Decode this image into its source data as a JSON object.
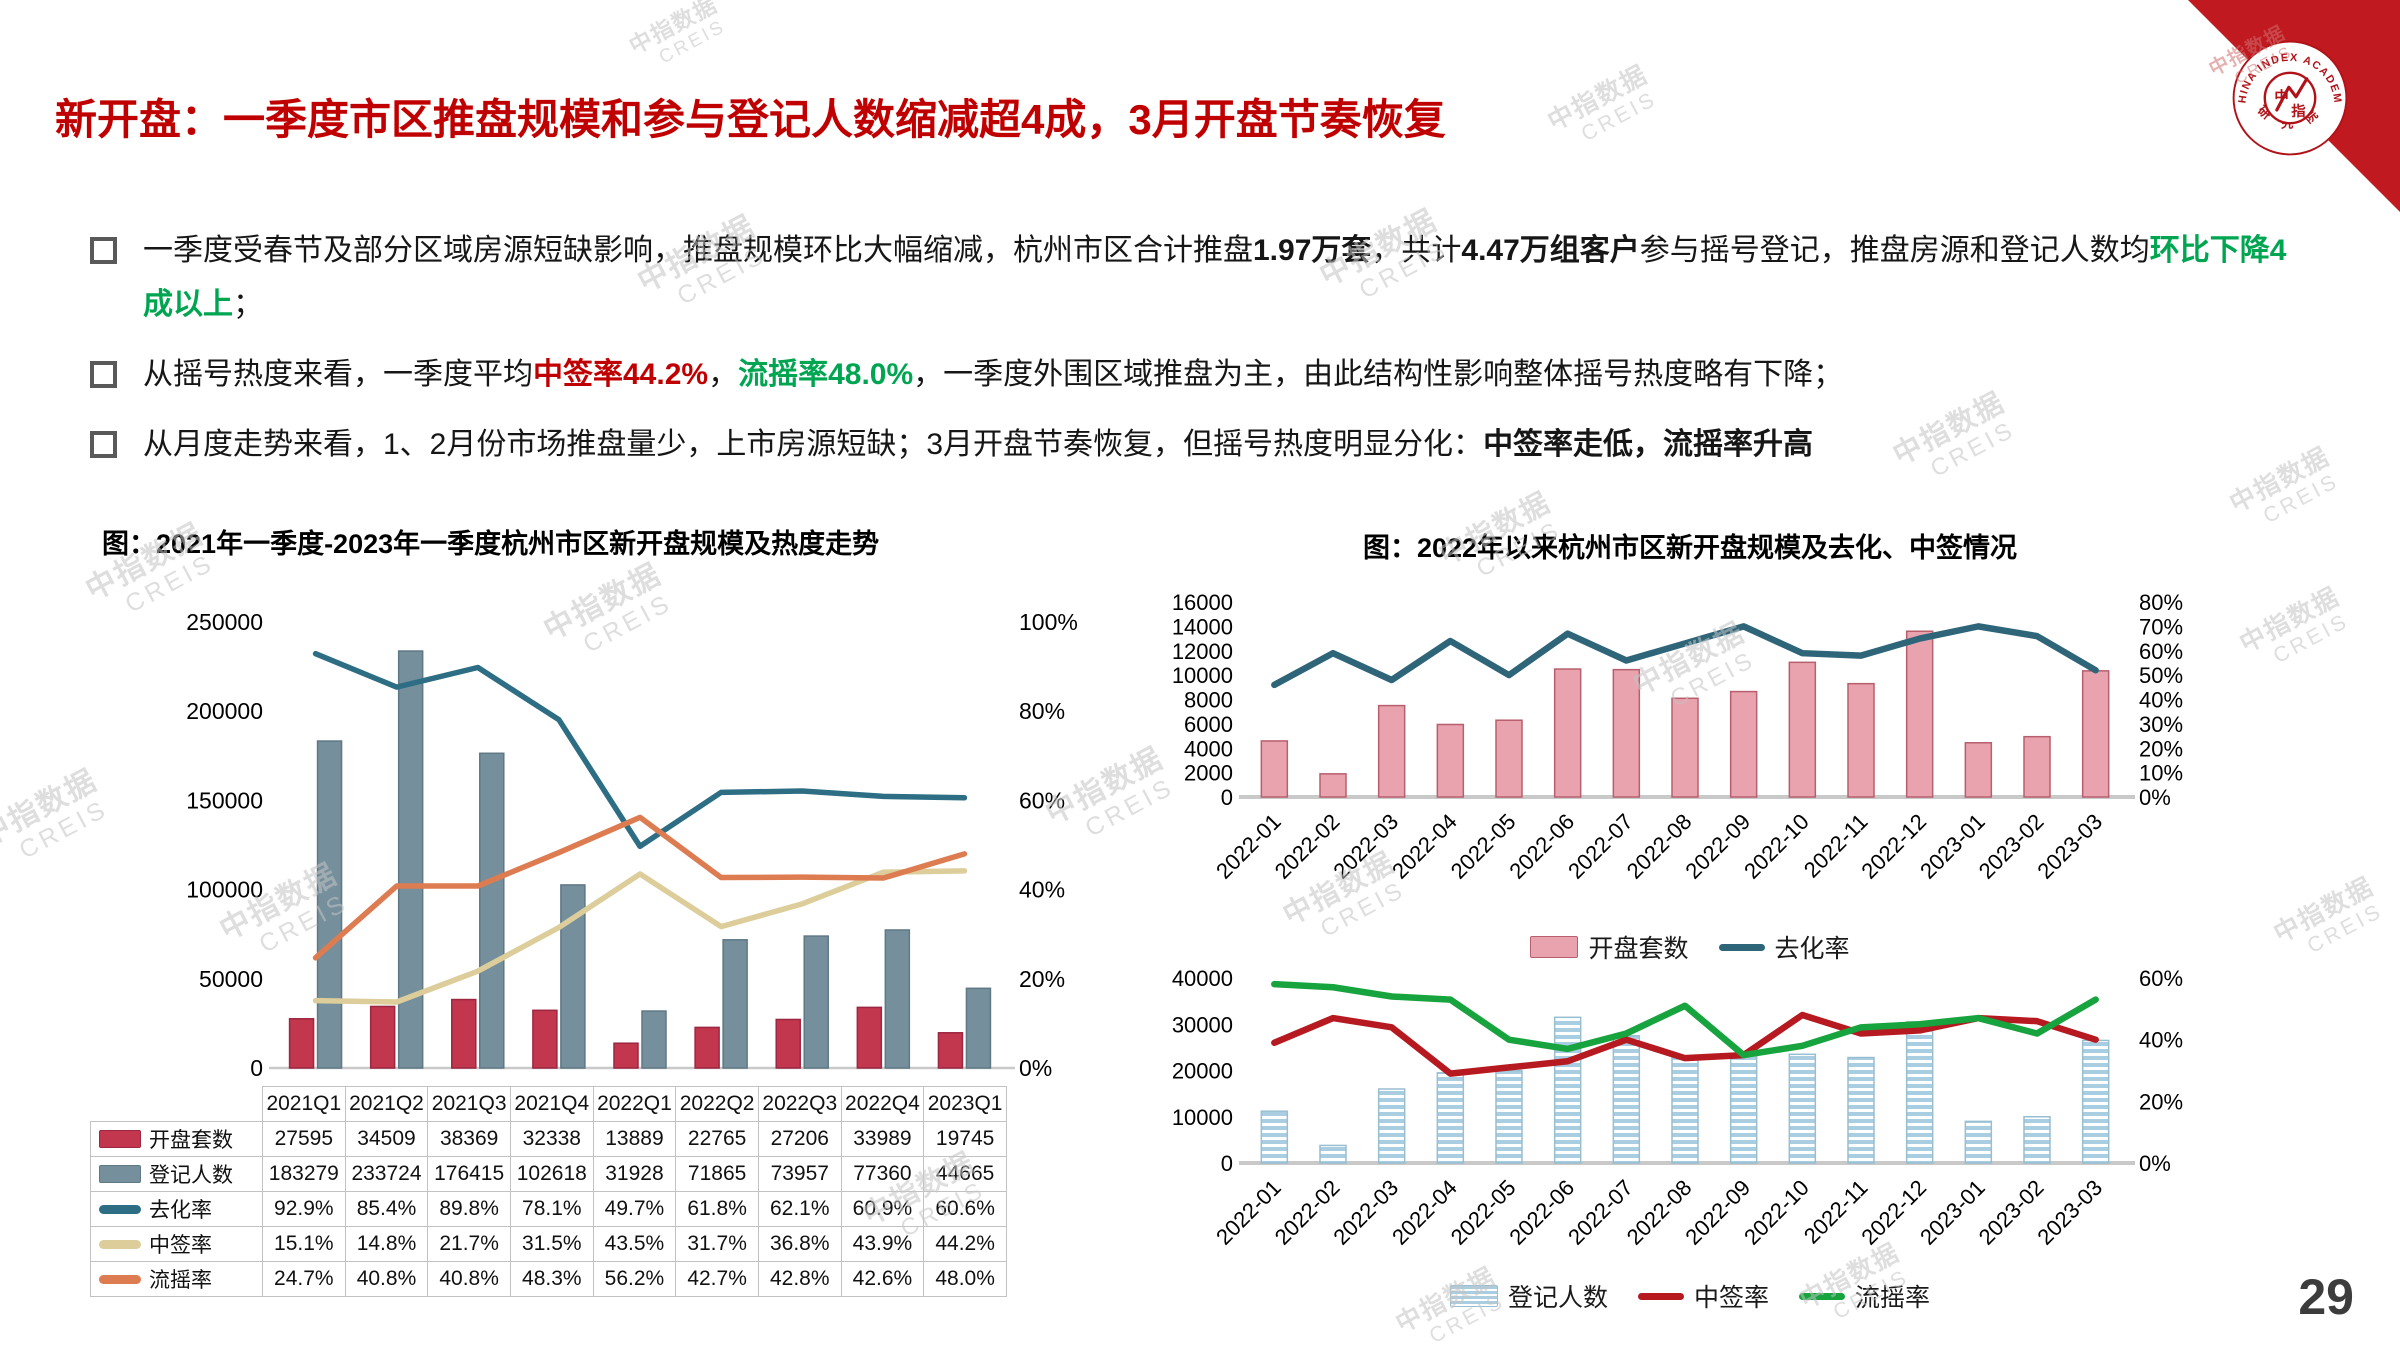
{
  "slide": {
    "title": "新开盘：一季度市区推盘规模和参与登记人数缩减超4成，3月开盘节奏恢复",
    "page_number": "29"
  },
  "logo": {
    "arc_text": "CHINA INDEX ACADEMY",
    "bottom_text": "研 究 院",
    "center_top": "中",
    "center_bottom": "指"
  },
  "watermark": {
    "line1": "中指数据",
    "line2": "CREIS"
  },
  "bullets": [
    {
      "segments": [
        {
          "t": "一季度受春节及部分区域房源短缺影响，推盘规模环比大幅缩减，杭州市区合计推盘",
          "s": "n"
        },
        {
          "t": "1.97万套",
          "s": "b"
        },
        {
          "t": "，共计",
          "s": "n"
        },
        {
          "t": "4.47万组客户",
          "s": "b"
        },
        {
          "t": "参与摇号登记，推盘房源和登记人数均",
          "s": "n"
        },
        {
          "t": "环比下降4成以上",
          "s": "gb"
        },
        {
          "t": "；",
          "s": "n"
        }
      ]
    },
    {
      "segments": [
        {
          "t": "从摇号热度来看，一季度平均",
          "s": "n"
        },
        {
          "t": "中签率44.2%",
          "s": "rb"
        },
        {
          "t": "，",
          "s": "n"
        },
        {
          "t": "流摇率48.0%",
          "s": "gb"
        },
        {
          "t": "，一季度外围区域推盘为主，由此结构性影响整体摇号热度略有下降；",
          "s": "n"
        }
      ]
    },
    {
      "segments": [
        {
          "t": "从月度走势来看，1、2月份市场推盘量少，上市房源短缺；3月开盘节奏恢复，但摇号热度明显分化：",
          "s": "n"
        },
        {
          "t": "中签率走低，流摇率升高",
          "s": "b"
        }
      ]
    }
  ],
  "chart_data": [
    {
      "id": "quarterly-combo",
      "type": "bar+line",
      "title": "图：2021年一季度-2023年一季度杭州市区新开盘规模及热度走势",
      "categories": [
        "2021Q1",
        "2021Q2",
        "2021Q3",
        "2021Q4",
        "2022Q1",
        "2022Q2",
        "2022Q3",
        "2022Q4",
        "2023Q1"
      ],
      "bar_series": [
        {
          "name": "开盘套数",
          "color": "#c2364e",
          "border": "#9c2740",
          "values": [
            27595,
            34509,
            38369,
            32338,
            13889,
            22765,
            27206,
            33989,
            19745
          ]
        },
        {
          "name": "登记人数",
          "color": "#75909c",
          "border": "#5f7885",
          "values": [
            183279,
            233724,
            176415,
            102618,
            31928,
            71865,
            73957,
            77360,
            44665
          ]
        }
      ],
      "line_series": [
        {
          "name": "去化率",
          "color": "#2d6e84",
          "values": [
            92.9,
            85.4,
            89.8,
            78.1,
            49.7,
            61.8,
            62.1,
            60.9,
            60.6
          ]
        },
        {
          "name": "中签率",
          "color": "#dccd9a",
          "values": [
            15.1,
            14.8,
            21.7,
            31.5,
            43.5,
            31.7,
            36.8,
            43.9,
            44.2
          ]
        },
        {
          "name": "流摇率",
          "color": "#dd7b51",
          "values": [
            24.7,
            40.8,
            40.8,
            48.3,
            56.2,
            42.7,
            42.8,
            42.6,
            48.0
          ]
        }
      ],
      "left_axis": {
        "min": 0,
        "max": 250000,
        "ticks": [
          0,
          50000,
          100000,
          150000,
          200000,
          250000
        ]
      },
      "right_axis": {
        "min": 0,
        "max": 100,
        "ticks": [
          0,
          20,
          40,
          60,
          80,
          100
        ]
      },
      "legend_position": "table-left-column",
      "grid": false
    },
    {
      "id": "monthly-openings",
      "type": "bar+line",
      "title": "图：2022年以来杭州市区新开盘规模及去化、中签情况",
      "categories": [
        "2022-01",
        "2022-02",
        "2022-03",
        "2022-04",
        "2022-05",
        "2022-06",
        "2022-07",
        "2022-08",
        "2022-09",
        "2022-10",
        "2022-11",
        "2022-12",
        "2023-01",
        "2023-02",
        "2023-03"
      ],
      "bar_series": [
        {
          "name": "开盘套数",
          "color": "#e8a3ae",
          "border": "#b85f6d",
          "values": [
            4600,
            1900,
            7500,
            5950,
            6300,
            10500,
            10450,
            8100,
            8650,
            11050,
            9300,
            13600,
            4450,
            4950,
            10350
          ]
        }
      ],
      "line_series": [
        {
          "name": "去化率",
          "color": "#2f6579",
          "values": [
            46,
            59,
            48,
            64,
            50,
            67,
            56,
            63,
            70,
            59,
            58,
            65,
            70,
            66,
            52
          ]
        }
      ],
      "left_axis": {
        "min": 0,
        "max": 16000,
        "ticks": [
          0,
          2000,
          4000,
          6000,
          8000,
          10000,
          12000,
          14000,
          16000
        ]
      },
      "right_axis": {
        "min": 0,
        "max": 80,
        "ticks": [
          0,
          10,
          20,
          30,
          40,
          50,
          60,
          70,
          80
        ]
      },
      "legend": [
        {
          "label": "开盘套数",
          "type": "bar",
          "color": "#e8a3ae",
          "border": "#b85f6d"
        },
        {
          "label": "去化率",
          "type": "line",
          "color": "#2f6579"
        }
      ],
      "grid": false
    },
    {
      "id": "monthly-registrations",
      "type": "bar+line",
      "title": "",
      "categories": [
        "2022-01",
        "2022-02",
        "2022-03",
        "2022-04",
        "2022-05",
        "2022-06",
        "2022-07",
        "2022-08",
        "2022-09",
        "2022-10",
        "2022-11",
        "2022-12",
        "2023-01",
        "2023-02",
        "2023-03"
      ],
      "bar_series": [
        {
          "name": "登记人数",
          "color": "#a9cde1",
          "border": "#98bed2",
          "pattern": "hstripes",
          "values": [
            11200,
            3800,
            16000,
            19500,
            20000,
            31500,
            27500,
            23000,
            23500,
            23500,
            22800,
            30500,
            9000,
            10000,
            26500
          ]
        }
      ],
      "line_series": [
        {
          "name": "中签率",
          "color": "#b6191f",
          "values": [
            39,
            47,
            44,
            29,
            31,
            33,
            40,
            34,
            35,
            48,
            42,
            43,
            47,
            46,
            40
          ]
        },
        {
          "name": "流摇率",
          "color": "#17a33e",
          "values": [
            58,
            57,
            54,
            53,
            40,
            37,
            42,
            51,
            35,
            38,
            44,
            45,
            47,
            42,
            53
          ]
        }
      ],
      "left_axis": {
        "min": 0,
        "max": 40000,
        "ticks": [
          0,
          10000,
          20000,
          30000,
          40000
        ]
      },
      "right_axis": {
        "min": 0,
        "max": 60,
        "ticks": [
          0,
          20,
          40,
          60
        ]
      },
      "legend": [
        {
          "label": "登记人数",
          "type": "bar",
          "color": "#a9cde1",
          "border": "#98bed2",
          "pattern": "hstripes"
        },
        {
          "label": "中签率",
          "type": "line",
          "color": "#b6191f"
        },
        {
          "label": "流摇率",
          "type": "line",
          "color": "#17a33e"
        }
      ],
      "grid": false
    }
  ]
}
